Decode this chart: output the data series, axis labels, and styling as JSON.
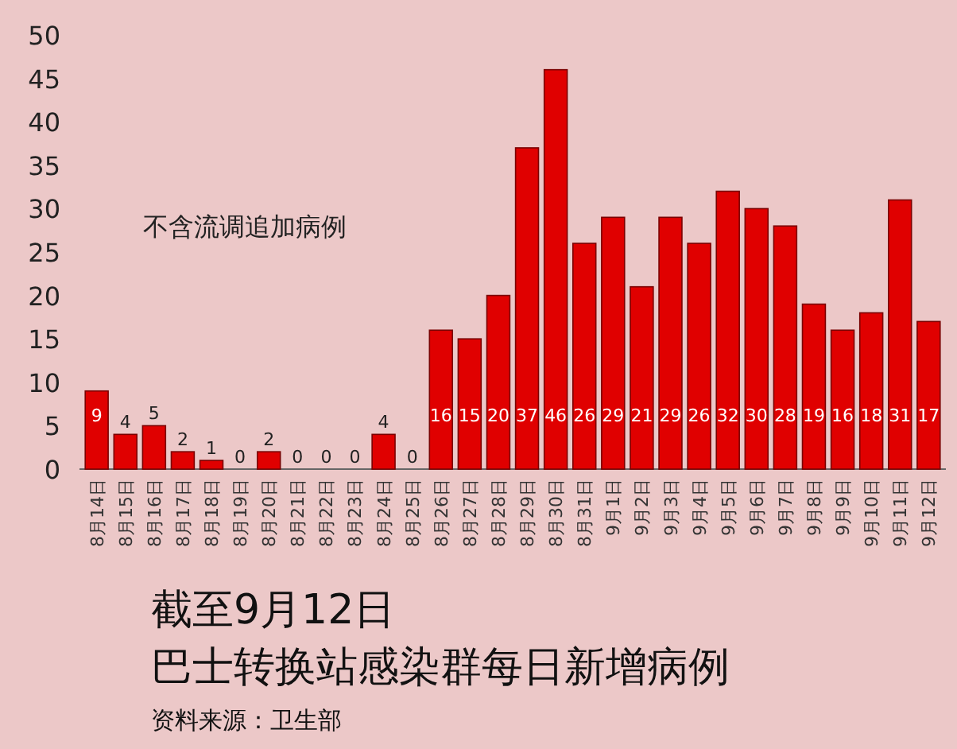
{
  "chart_data": {
    "type": "bar",
    "title": "截至9月12日",
    "subtitle": "巴士转换站感染群每日新增病例",
    "categories": [
      "8月14日",
      "8月15日",
      "8月16日",
      "8月17日",
      "8月18日",
      "8月19日",
      "8月20日",
      "8月21日",
      "8月22日",
      "8月23日",
      "8月24日",
      "8月25日",
      "8月26日",
      "8月27日",
      "8月28日",
      "8月29日",
      "8月30日",
      "8月31日",
      "9月1日",
      "9月2日",
      "9月3日",
      "9月4日",
      "9月5日",
      "9月6日",
      "9月7日",
      "9月8日",
      "9月9日",
      "9月10日",
      "9月11日",
      "9月12日"
    ],
    "values": [
      9,
      4,
      5,
      2,
      1,
      0,
      2,
      0,
      0,
      0,
      4,
      0,
      16,
      15,
      20,
      37,
      46,
      26,
      29,
      21,
      29,
      26,
      32,
      30,
      28,
      19,
      16,
      18,
      31,
      17
    ],
    "color": "#e00000",
    "ylim": [
      0,
      50
    ],
    "yticks": [
      0,
      5,
      10,
      15,
      20,
      25,
      30,
      35,
      40,
      45,
      50
    ],
    "grid": false,
    "data_labels": true,
    "annotations": [
      "不含流调追加病例",
      "资料来源：卫生部"
    ]
  }
}
